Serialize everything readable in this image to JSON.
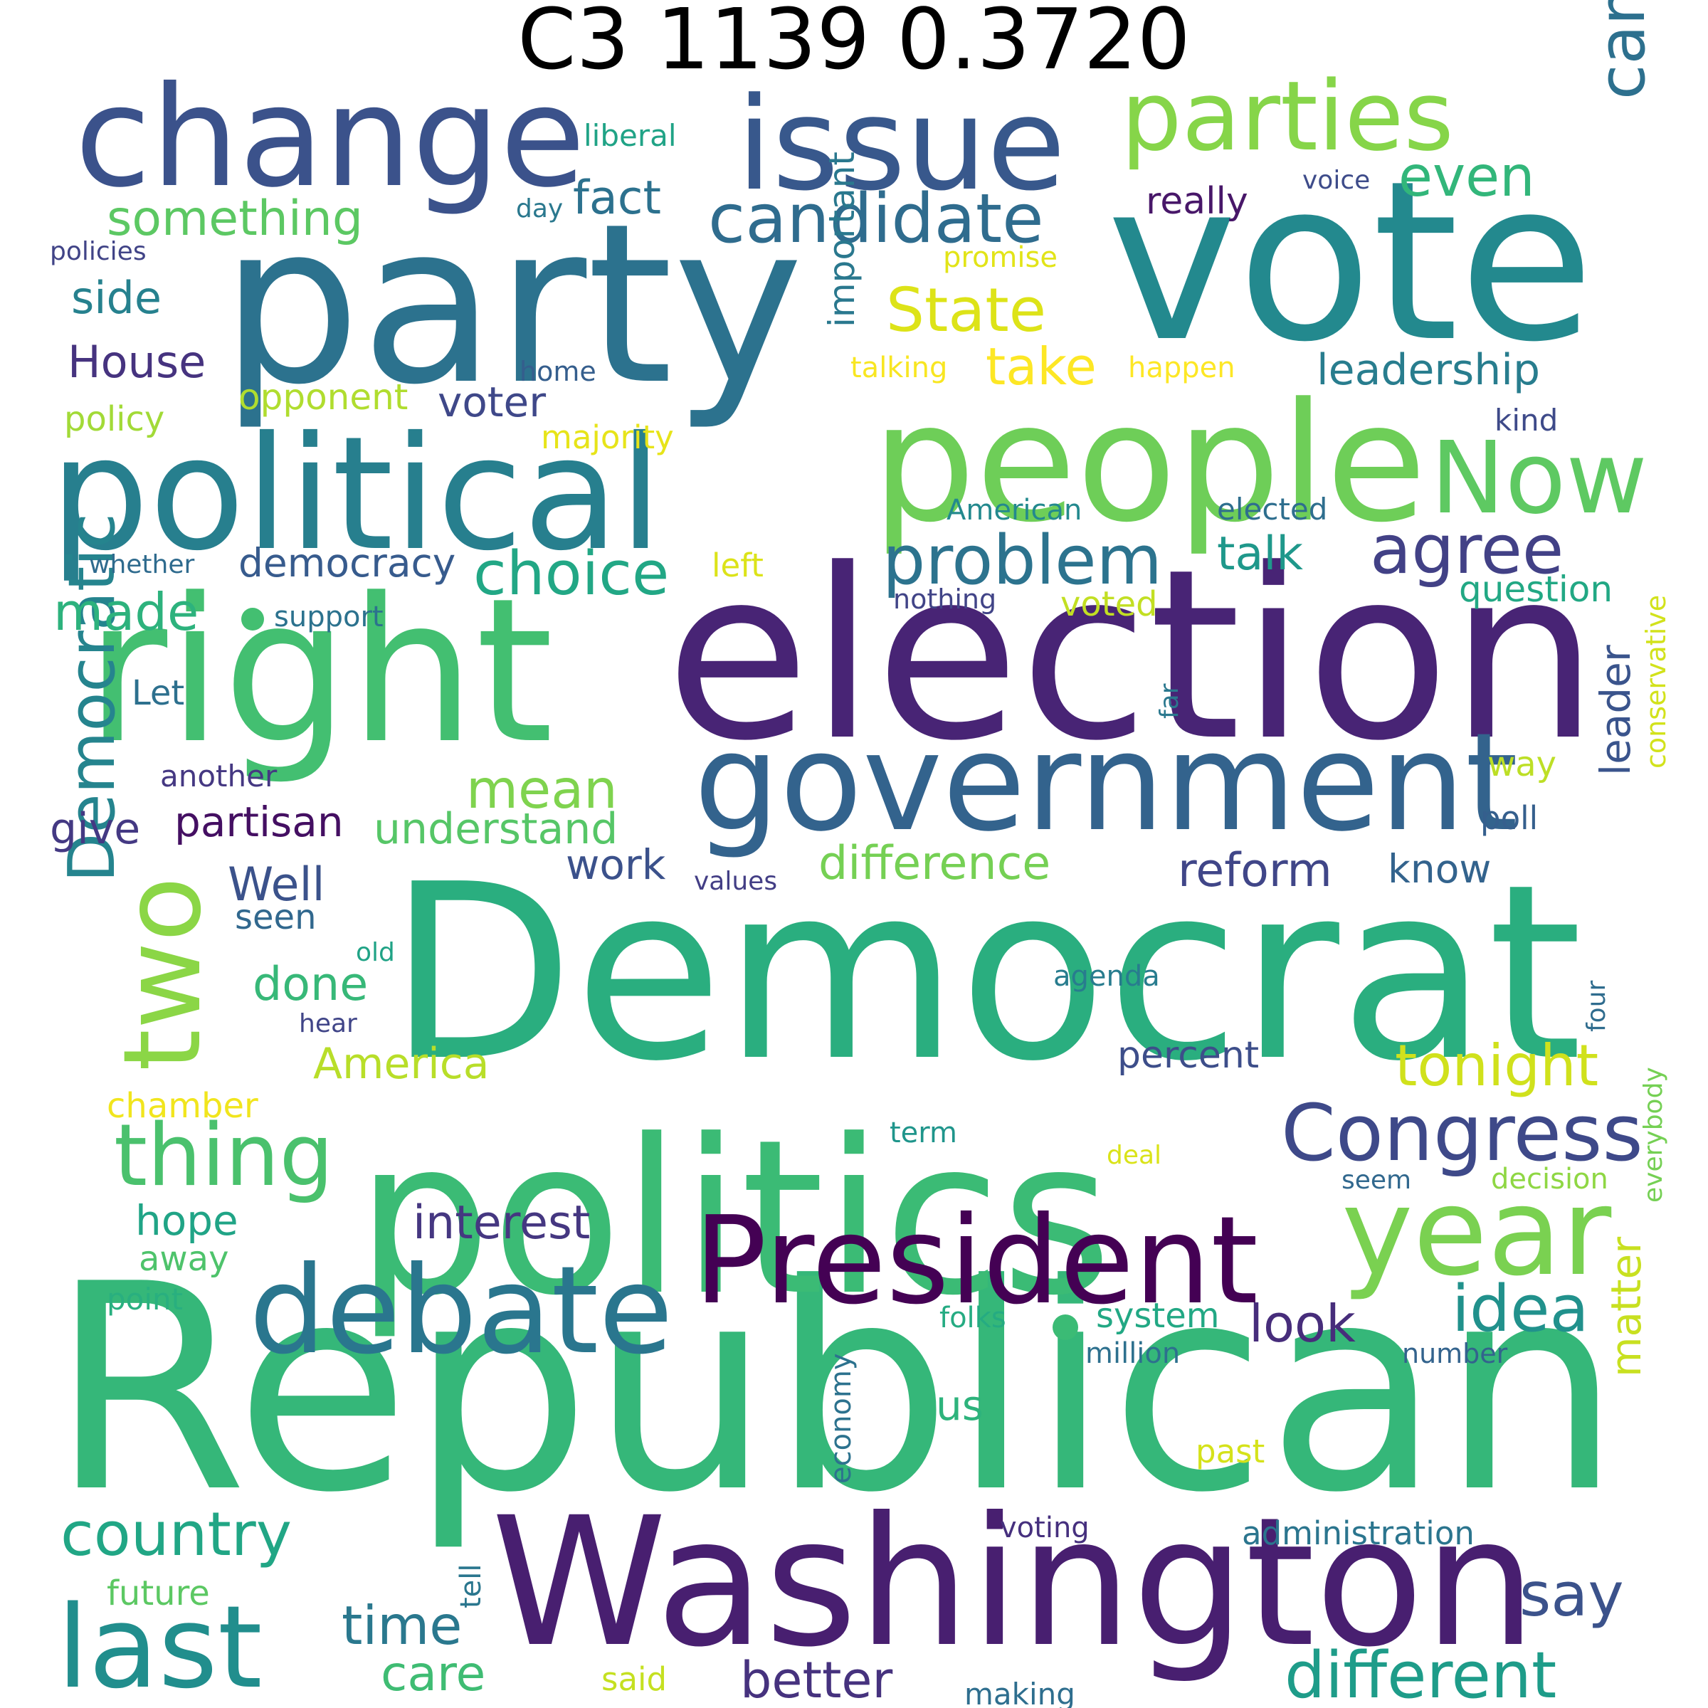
{
  "title": "C3 1139 0.3720",
  "palette": [
    "#440154",
    "#482878",
    "#3e4989",
    "#31688e",
    "#26828e",
    "#1f9e89",
    "#35b779",
    "#6ece58",
    "#b5de2b",
    "#fde725"
  ],
  "words": [
    {
      "text": "Republican",
      "color": "#35b779"
    },
    {
      "text": "Democrat",
      "color": "#2aae7f"
    },
    {
      "text": "election",
      "color": "#482475"
    },
    {
      "text": "party",
      "color": "#2c728e"
    },
    {
      "text": "vote",
      "color": "#23898e"
    },
    {
      "text": "politics",
      "color": "#3bbb75"
    },
    {
      "text": "right",
      "color": "#43bf71"
    },
    {
      "text": "Washington",
      "color": "#481f70"
    },
    {
      "text": "people",
      "color": "#6ece58"
    },
    {
      "text": "political",
      "color": "#277f8e"
    },
    {
      "text": "government",
      "color": "#33638d"
    },
    {
      "text": "change",
      "color": "#3b528b"
    },
    {
      "text": "issue",
      "color": "#38588c"
    },
    {
      "text": "President",
      "color": "#440154"
    },
    {
      "text": "debate",
      "color": "#2a768e"
    },
    {
      "text": "year",
      "color": "#7ad151"
    },
    {
      "text": "parties",
      "color": "#86d549"
    },
    {
      "text": "last",
      "color": "#218e8d"
    },
    {
      "text": "Now",
      "color": "#5ec962"
    },
    {
      "text": "two",
      "color": "#8bd646"
    },
    {
      "text": "Congress",
      "color": "#3e4989"
    },
    {
      "text": "thing",
      "color": "#4ac16d"
    },
    {
      "text": "candidate",
      "color": "#2f6c8e"
    },
    {
      "text": "agree",
      "color": "#424186"
    },
    {
      "text": "problem",
      "color": "#2c738e"
    },
    {
      "text": "campaign",
      "color": "#2d708e"
    },
    {
      "text": "Democratic",
      "color": "#25848e"
    },
    {
      "text": "idea",
      "color": "#21918c"
    },
    {
      "text": "different",
      "color": "#1e9c89"
    },
    {
      "text": "country",
      "color": "#21a685"
    },
    {
      "text": "choice",
      "color": "#22a785"
    },
    {
      "text": "State",
      "color": "#dde318"
    },
    {
      "text": "tonight",
      "color": "#d0e11c"
    },
    {
      "text": "Washington dot",
      "color": "#481f70"
    },
    {
      "text": "better",
      "color": "#46327e"
    },
    {
      "text": "say",
      "color": "#3b528b"
    },
    {
      "text": "time",
      "color": "#2a788e"
    },
    {
      "text": "look",
      "color": "#472d7b"
    },
    {
      "text": "interest",
      "color": "#453781"
    },
    {
      "text": "mean",
      "color": "#7fd34e"
    },
    {
      "text": "made",
      "color": "#2db27d"
    },
    {
      "text": "even",
      "color": "#32b67a"
    },
    {
      "text": "take",
      "color": "#fde725"
    },
    {
      "text": "something",
      "color": "#5cc863"
    },
    {
      "text": "fact",
      "color": "#2c718e"
    },
    {
      "text": "understand",
      "color": "#56c667"
    },
    {
      "text": "difference",
      "color": "#75d054"
    },
    {
      "text": "reform",
      "color": "#404688"
    },
    {
      "text": "leadership",
      "color": "#287d8e"
    },
    {
      "text": "talk",
      "color": "#1f988b"
    },
    {
      "text": "House",
      "color": "#46337f"
    },
    {
      "text": "side",
      "color": "#26818e"
    },
    {
      "text": "give",
      "color": "#443983"
    },
    {
      "text": "partisan",
      "color": "#440f62"
    },
    {
      "text": "Well",
      "color": "#3b528b"
    },
    {
      "text": "done",
      "color": "#37b878"
    },
    {
      "text": "America",
      "color": "#b8de29"
    },
    {
      "text": "care",
      "color": "#3fbc73"
    },
    {
      "text": "hope",
      "color": "#20a486"
    },
    {
      "text": "work",
      "color": "#3b518b"
    },
    {
      "text": "voter",
      "color": "#3f4889"
    },
    {
      "text": "democracy",
      "color": "#375b8d"
    },
    {
      "text": "important",
      "color": "#2a788e"
    },
    {
      "text": "leader",
      "color": "#3a548c"
    },
    {
      "text": "matter",
      "color": "#c8e020"
    },
    {
      "text": "us",
      "color": "#2eb37c"
    },
    {
      "text": "really",
      "color": "#481769"
    },
    {
      "text": "opponent",
      "color": "#b0dd2f"
    },
    {
      "text": "majority",
      "color": "#e7e419"
    },
    {
      "text": "policy",
      "color": "#a2da37"
    },
    {
      "text": "voted",
      "color": "#c2df23"
    },
    {
      "text": "question",
      "color": "#22a884"
    },
    {
      "text": "know",
      "color": "#33638d"
    },
    {
      "text": "percent",
      "color": "#3d4e8a"
    },
    {
      "text": "chamber",
      "color": "#f1e51d"
    },
    {
      "text": "way",
      "color": "#bddf26"
    },
    {
      "text": "poll",
      "color": "#355f8d"
    },
    {
      "text": "away",
      "color": "#4ec36b"
    },
    {
      "text": "Let",
      "color": "#2d708e"
    },
    {
      "text": "left",
      "color": "#dce319"
    },
    {
      "text": "seen",
      "color": "#31688e"
    },
    {
      "text": "liberal",
      "color": "#20a386"
    },
    {
      "text": "kind",
      "color": "#3e4a89"
    },
    {
      "text": "elected",
      "color": "#2e6e8e"
    },
    {
      "text": "support",
      "color": "#2c728e"
    },
    {
      "text": "future",
      "color": "#5cc863"
    },
    {
      "text": "system",
      "color": "#22a884"
    },
    {
      "text": "administration",
      "color": "#2b758e"
    },
    {
      "text": "said",
      "color": "#c5e021"
    },
    {
      "text": "another",
      "color": "#453882"
    },
    {
      "text": "American",
      "color": "#23898e"
    },
    {
      "text": "point",
      "color": "#29af7f"
    },
    {
      "text": "term",
      "color": "#1f958b"
    },
    {
      "text": "happen",
      "color": "#fde725"
    },
    {
      "text": "promise",
      "color": "#e2e418"
    },
    {
      "text": "talking",
      "color": "#f8e621"
    },
    {
      "text": "nothing",
      "color": "#414487"
    },
    {
      "text": "conservative",
      "color": "#d2e21b"
    },
    {
      "text": "decision",
      "color": "#8fd744"
    },
    {
      "text": "voice",
      "color": "#3e4c8a"
    },
    {
      "text": "day",
      "color": "#2a788e"
    },
    {
      "text": "policies",
      "color": "#414487"
    },
    {
      "text": "whether",
      "color": "#2f6b8e"
    },
    {
      "text": "values",
      "color": "#433e85"
    },
    {
      "text": "old",
      "color": "#20a386"
    },
    {
      "text": "hear",
      "color": "#404588"
    },
    {
      "text": "agenda",
      "color": "#287c8e"
    },
    {
      "text": "four",
      "color": "#2f6c8e"
    },
    {
      "text": "far",
      "color": "#2a788e"
    },
    {
      "text": "deal",
      "color": "#dae319"
    },
    {
      "text": "seem",
      "color": "#31688e"
    },
    {
      "text": "folks",
      "color": "#25ab82"
    },
    {
      "text": "million",
      "color": "#2d708e"
    },
    {
      "text": "number",
      "color": "#33638d"
    },
    {
      "text": "everybody",
      "color": "#75d054"
    },
    {
      "text": "economy",
      "color": "#2c728e"
    },
    {
      "text": "past",
      "color": "#d5e21a"
    },
    {
      "text": "voting",
      "color": "#46307e"
    },
    {
      "text": "tell",
      "color": "#2a768e"
    },
    {
      "text": "making",
      "color": "#2e6e8e"
    },
    {
      "text": "home",
      "color": "#355e8d"
    }
  ]
}
